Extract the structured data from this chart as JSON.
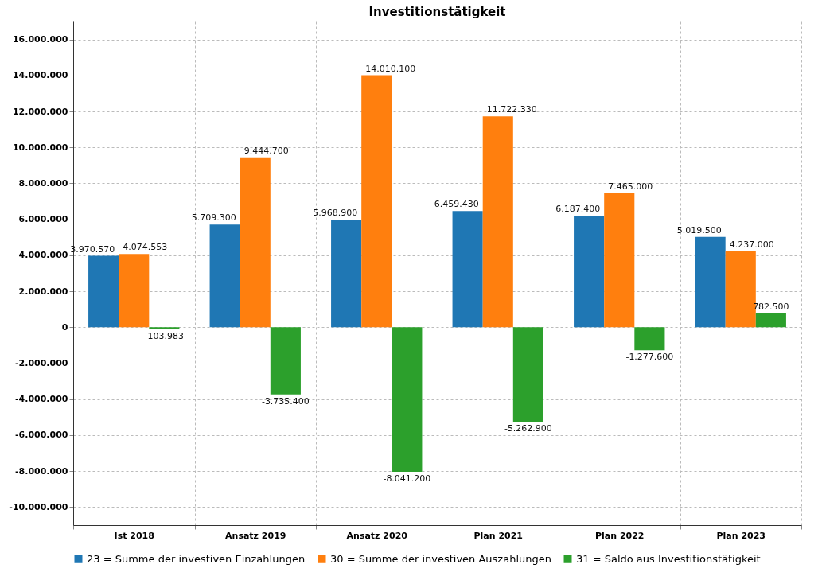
{
  "chart_data": {
    "type": "bar",
    "title": "Investitionstätigkeit",
    "categories": [
      "Ist 2018",
      "Ansatz 2019",
      "Ansatz 2020",
      "Plan 2021",
      "Plan 2022",
      "Plan 2023"
    ],
    "series": [
      {
        "name": "23 = Summe der investiven Einzahlungen",
        "color": "#1f77b4",
        "values": [
          3970570,
          5709300,
          5968900,
          6459430,
          6187400,
          5019500
        ],
        "value_labels": [
          "3.970.570",
          "5.709.300",
          "5.968.900",
          "6.459.430",
          "6.187.400",
          "5.019.500"
        ]
      },
      {
        "name": "30 = Summe der investiven Auszahlungen",
        "color": "#ff7f0e",
        "values": [
          4074553,
          9444700,
          14010100,
          11722330,
          7465000,
          4237000
        ],
        "value_labels": [
          "4.074.553",
          "9.444.700",
          "14.010.100",
          "11.722.330",
          "7.465.000",
          "4.237.000"
        ]
      },
      {
        "name": "31 = Saldo aus Investitionstätigkeit",
        "color": "#2ca02c",
        "values": [
          -103983,
          -3735400,
          -8041200,
          -5262900,
          -1277600,
          782500
        ],
        "value_labels": [
          "-103.983",
          "-3.735.400",
          "-8.041.200",
          "-5.262.900",
          "-1.277.600",
          "782.500"
        ]
      }
    ],
    "ylim": [
      -11000000,
      17000000
    ],
    "yticks": [
      {
        "value": -10000000,
        "label": "-10.000.000"
      },
      {
        "value": -8000000,
        "label": "-8.000.000"
      },
      {
        "value": -6000000,
        "label": "-6.000.000"
      },
      {
        "value": -4000000,
        "label": "-4.000.000"
      },
      {
        "value": -2000000,
        "label": "-2.000.000"
      },
      0,
      {
        "value": 2000000,
        "label": "2.000.000"
      },
      {
        "value": 4000000,
        "label": "4.000.000"
      },
      {
        "value": 6000000,
        "label": "6.000.000"
      },
      {
        "value": 8000000,
        "label": "8.000.000"
      },
      {
        "value": 10000000,
        "label": "10.000.000"
      },
      {
        "value": 12000000,
        "label": "12.000.000"
      },
      {
        "value": 14000000,
        "label": "14.000.000"
      },
      {
        "value": 16000000,
        "label": "16.000.000"
      }
    ],
    "grid": true,
    "legend": "bottom"
  }
}
